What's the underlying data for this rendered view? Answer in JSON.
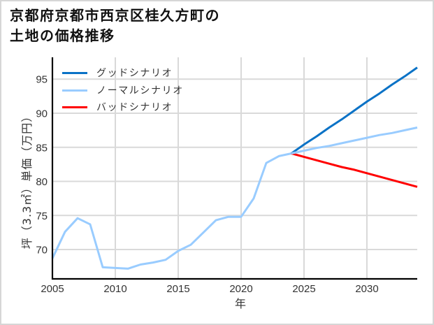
{
  "header": {
    "title_lines": [
      "京都府京都市西京区桂久方町の",
      "土地の価格推移"
    ]
  },
  "axes": {
    "xlabel": "年",
    "ylabel": "坪（3.3㎡）単価（万円）"
  },
  "legend": {
    "items": [
      {
        "label": "グッドシナリオ",
        "color": "#0a72c6"
      },
      {
        "label": "ノーマルシナリオ",
        "color": "#99ccff"
      },
      {
        "label": "バッドシナリオ",
        "color": "#ff0000"
      }
    ]
  },
  "colors": {
    "grid": "#d9d9d9",
    "spine": "#000000",
    "good": "#0a72c6",
    "normal": "#99ccff",
    "bad": "#ff0000"
  },
  "chart_data": {
    "type": "line",
    "title": "京都府京都市西京区桂久方町の土地の価格推移",
    "xlabel": "年",
    "ylabel": "坪（3.3㎡）単価（万円）",
    "xlim": [
      2005,
      2034
    ],
    "ylim": [
      65.7,
      98.2
    ],
    "xticks": [
      2005,
      2010,
      2015,
      2020,
      2025,
      2030
    ],
    "yticks": [
      70,
      75,
      80,
      85,
      90,
      95
    ],
    "grid": true,
    "legend_position": "upper left",
    "series": [
      {
        "key": "history",
        "color": "#99ccff",
        "x": [
          2005,
          2006,
          2007,
          2008,
          2009,
          2010,
          2011,
          2012,
          2013,
          2014,
          2015,
          2016,
          2017,
          2018,
          2019,
          2020,
          2021,
          2022,
          2023,
          2024
        ],
        "values": [
          68.7,
          72.6,
          74.6,
          73.7,
          67.4,
          67.3,
          67.2,
          67.8,
          68.1,
          68.5,
          69.8,
          70.7,
          72.5,
          74.3,
          74.8,
          74.8,
          77.5,
          82.7,
          83.7,
          84.1
        ]
      },
      {
        "key": "good",
        "name": "グッドシナリオ",
        "color": "#0a72c6",
        "x": [
          2024,
          2025,
          2026,
          2027,
          2028,
          2029,
          2030,
          2031,
          2032,
          2033,
          2034
        ],
        "values": [
          84.1,
          85.4,
          86.6,
          87.9,
          89.1,
          90.4,
          91.7,
          92.9,
          94.2,
          95.4,
          96.7
        ]
      },
      {
        "key": "normal",
        "name": "ノーマルシナリオ",
        "color": "#99ccff",
        "x": [
          2024,
          2025,
          2026,
          2027,
          2028,
          2029,
          2030,
          2031,
          2032,
          2033,
          2034
        ],
        "values": [
          84.1,
          84.5,
          84.9,
          85.2,
          85.6,
          86.0,
          86.4,
          86.8,
          87.1,
          87.5,
          87.9
        ]
      },
      {
        "key": "bad",
        "name": "バッドシナリオ",
        "color": "#ff0000",
        "x": [
          2024,
          2025,
          2026,
          2027,
          2028,
          2029,
          2030,
          2031,
          2032,
          2033,
          2034
        ],
        "values": [
          84.1,
          83.6,
          83.1,
          82.6,
          82.1,
          81.7,
          81.2,
          80.7,
          80.2,
          79.7,
          79.2
        ]
      }
    ]
  }
}
